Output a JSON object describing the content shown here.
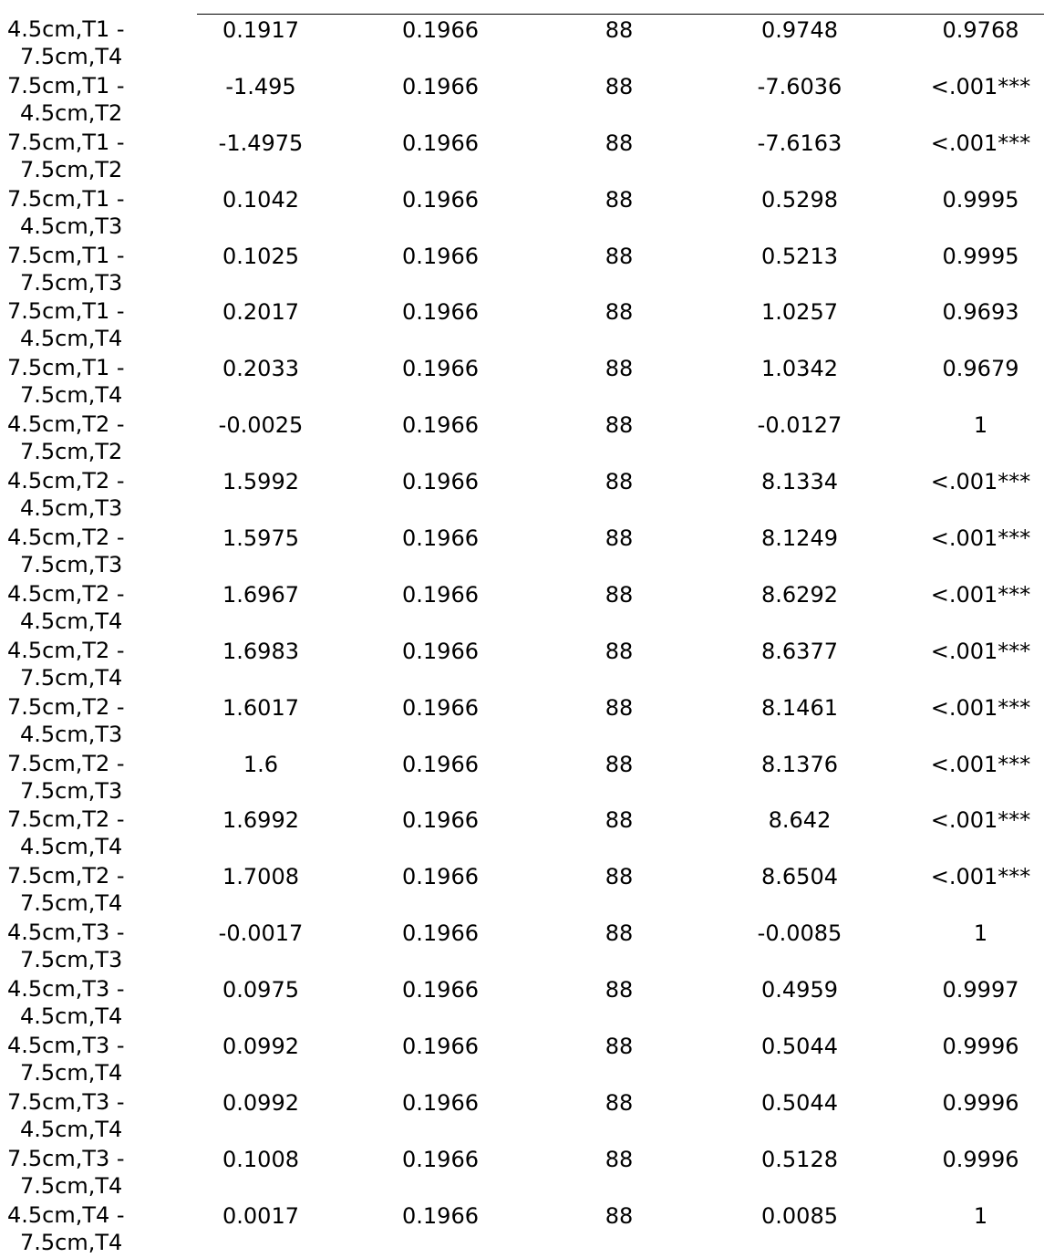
{
  "table": {
    "rows": [
      {
        "comparison": [
          "4.5cm,T1 -",
          "7.5cm,T4"
        ],
        "estimate": "0.1917",
        "se": "0.1966",
        "df": "88",
        "t": "0.9748",
        "p": "0.9768"
      },
      {
        "comparison": [
          "7.5cm,T1 -",
          "4.5cm,T2"
        ],
        "estimate": "-1.495",
        "se": "0.1966",
        "df": "88",
        "t": "-7.6036",
        "p": "<.001***"
      },
      {
        "comparison": [
          "7.5cm,T1 -",
          "7.5cm,T2"
        ],
        "estimate": "-1.4975",
        "se": "0.1966",
        "df": "88",
        "t": "-7.6163",
        "p": "<.001***"
      },
      {
        "comparison": [
          "7.5cm,T1 -",
          "4.5cm,T3"
        ],
        "estimate": "0.1042",
        "se": "0.1966",
        "df": "88",
        "t": "0.5298",
        "p": "0.9995"
      },
      {
        "comparison": [
          "7.5cm,T1 -",
          "7.5cm,T3"
        ],
        "estimate": "0.1025",
        "se": "0.1966",
        "df": "88",
        "t": "0.5213",
        "p": "0.9995"
      },
      {
        "comparison": [
          "7.5cm,T1 -",
          "4.5cm,T4"
        ],
        "estimate": "0.2017",
        "se": "0.1966",
        "df": "88",
        "t": "1.0257",
        "p": "0.9693"
      },
      {
        "comparison": [
          "7.5cm,T1 -",
          "7.5cm,T4"
        ],
        "estimate": "0.2033",
        "se": "0.1966",
        "df": "88",
        "t": "1.0342",
        "p": "0.9679"
      },
      {
        "comparison": [
          "4.5cm,T2 -",
          "7.5cm,T2"
        ],
        "estimate": "-0.0025",
        "se": "0.1966",
        "df": "88",
        "t": "-0.0127",
        "p": "1"
      },
      {
        "comparison": [
          "4.5cm,T2 -",
          "4.5cm,T3"
        ],
        "estimate": "1.5992",
        "se": "0.1966",
        "df": "88",
        "t": "8.1334",
        "p": "<.001***"
      },
      {
        "comparison": [
          "4.5cm,T2 -",
          "7.5cm,T3"
        ],
        "estimate": "1.5975",
        "se": "0.1966",
        "df": "88",
        "t": "8.1249",
        "p": "<.001***"
      },
      {
        "comparison": [
          "4.5cm,T2 -",
          "4.5cm,T4"
        ],
        "estimate": "1.6967",
        "se": "0.1966",
        "df": "88",
        "t": "8.6292",
        "p": "<.001***"
      },
      {
        "comparison": [
          "4.5cm,T2 -",
          "7.5cm,T4"
        ],
        "estimate": "1.6983",
        "se": "0.1966",
        "df": "88",
        "t": "8.6377",
        "p": "<.001***"
      },
      {
        "comparison": [
          "7.5cm,T2 -",
          "4.5cm,T3"
        ],
        "estimate": "1.6017",
        "se": "0.1966",
        "df": "88",
        "t": "8.1461",
        "p": "<.001***"
      },
      {
        "comparison": [
          "7.5cm,T2 -",
          "7.5cm,T3"
        ],
        "estimate": "1.6",
        "se": "0.1966",
        "df": "88",
        "t": "8.1376",
        "p": "<.001***"
      },
      {
        "comparison": [
          "7.5cm,T2 -",
          "4.5cm,T4"
        ],
        "estimate": "1.6992",
        "se": "0.1966",
        "df": "88",
        "t": "8.642",
        "p": "<.001***"
      },
      {
        "comparison": [
          "7.5cm,T2 -",
          "7.5cm,T4"
        ],
        "estimate": "1.7008",
        "se": "0.1966",
        "df": "88",
        "t": "8.6504",
        "p": "<.001***"
      },
      {
        "comparison": [
          "4.5cm,T3 -",
          "7.5cm,T3"
        ],
        "estimate": "-0.0017",
        "se": "0.1966",
        "df": "88",
        "t": "-0.0085",
        "p": "1"
      },
      {
        "comparison": [
          "4.5cm,T3 -",
          "4.5cm,T4"
        ],
        "estimate": "0.0975",
        "se": "0.1966",
        "df": "88",
        "t": "0.4959",
        "p": "0.9997"
      },
      {
        "comparison": [
          "4.5cm,T3 -",
          "7.5cm,T4"
        ],
        "estimate": "0.0992",
        "se": "0.1966",
        "df": "88",
        "t": "0.5044",
        "p": "0.9996"
      },
      {
        "comparison": [
          "7.5cm,T3 -",
          "4.5cm,T4"
        ],
        "estimate": "0.0992",
        "se": "0.1966",
        "df": "88",
        "t": "0.5044",
        "p": "0.9996"
      },
      {
        "comparison": [
          "7.5cm,T3 -",
          "7.5cm,T4"
        ],
        "estimate": "0.1008",
        "se": "0.1966",
        "df": "88",
        "t": "0.5128",
        "p": "0.9996"
      },
      {
        "comparison": [
          "4.5cm,T4 -",
          "7.5cm,T4"
        ],
        "estimate": "0.0017",
        "se": "0.1966",
        "df": "88",
        "t": "0.0085",
        "p": "1"
      }
    ]
  }
}
